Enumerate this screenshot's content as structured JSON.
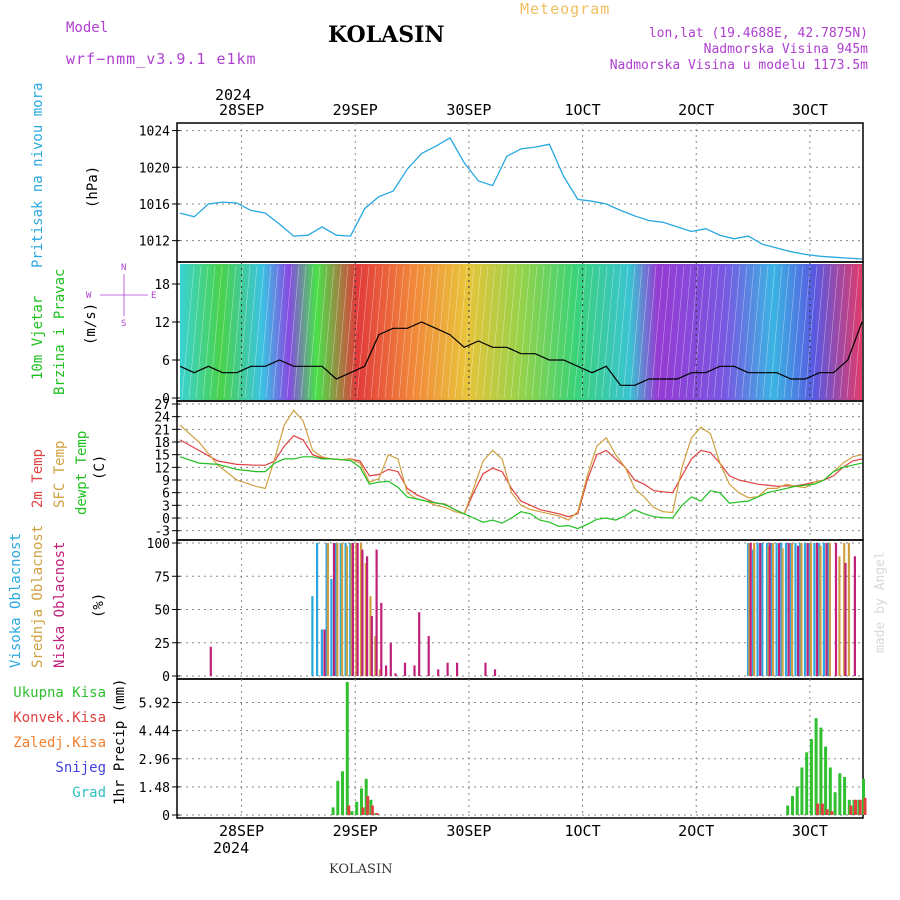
{
  "header": {
    "model_label": "Model",
    "model_name": "wrf−nmm_v3.9.1  e1km",
    "station": "KOLASIN",
    "meteogram_label": "Meteogram",
    "coords": "lon,lat (19.4688E, 42.7875N)",
    "elevation": "Nadmorska Visina 945m",
    "model_elevation": "Nadmorska Visina u modelu 1173.5m"
  },
  "footer": {
    "station": "KOLASIN",
    "watermark": "made by Angel"
  },
  "time_axis": {
    "year": "2024",
    "labels": [
      "28SEP",
      "29SEP",
      "30SEP",
      "1OCT",
      "2OCT",
      "3OCT"
    ],
    "hours_start": 0,
    "hours_end": 144
  },
  "panels": {
    "pressure": {
      "label1": "Pritisak na nivou mora",
      "unit": "(hPa)",
      "color": "#29a8e0"
    },
    "wind": {
      "label1": "10m Vjetar",
      "label2": "Brzina i Pravac",
      "unit": "(m/s)",
      "compass": [
        "N",
        "E",
        "S",
        "W"
      ],
      "color": "#20c020"
    },
    "temp": {
      "label1": "2m Temp",
      "label2": "SFC Temp",
      "label3": "dewpt Temp",
      "unit": "(C)"
    },
    "cloud": {
      "label1": "Visoka Oblacnost",
      "label2": "Srednja Oblacnost",
      "label3": "Niska Oblacnost",
      "unit": "(%)"
    },
    "precip": {
      "unit": "1hr Precip (mm)",
      "legend": [
        {
          "name": "Ukupna Kisa",
          "color": "#30c030"
        },
        {
          "name": "Konvek.Kisa",
          "color": "#e04040"
        },
        {
          "name": "Zaledj.Kisa",
          "color": "#f08030"
        },
        {
          "name": "Snijeg",
          "color": "#4040e0"
        },
        {
          "name": "Grad",
          "color": "#30c0c0"
        }
      ]
    }
  },
  "chart_data": [
    {
      "type": "line",
      "ylim": [
        1010,
        1024.5
      ],
      "yticks": [
        1012,
        1016,
        1020,
        1024
      ],
      "series": [
        {
          "color": "#29a8e0",
          "x": [
            0,
            3,
            6,
            9,
            12,
            15,
            18,
            21,
            24,
            27,
            30,
            33,
            36,
            39,
            42,
            45,
            48,
            51,
            54,
            57,
            60,
            63,
            66,
            69,
            72,
            75,
            78,
            81,
            84,
            87,
            90,
            93,
            96,
            99,
            102,
            105,
            108,
            111,
            114,
            117,
            120,
            123,
            126,
            129,
            132,
            135,
            138,
            141,
            144
          ],
          "y": [
            1015,
            1014.6,
            1016,
            1016.2,
            1016.1,
            1015.3,
            1015,
            1013.8,
            1012.5,
            1012.6,
            1013.5,
            1012.6,
            1012.5,
            1015.5,
            1016.8,
            1017.4,
            1019.8,
            1021.5,
            1022.3,
            1023.2,
            1020.5,
            1018.5,
            1018,
            1021.2,
            1022,
            1022.2,
            1022.5,
            1019,
            1016.5,
            1016.3,
            1016,
            1015.3,
            1014.7,
            1014.2,
            1014,
            1013.5,
            1013,
            1013.3,
            1012.6,
            1012.2,
            1012.5,
            1011.6,
            1011.2,
            1010.8,
            1010.5,
            1010.3,
            1010.2,
            1010.1,
            1010
          ]
        }
      ]
    },
    {
      "type": "line",
      "ylim": [
        0,
        21
      ],
      "yticks": [
        0,
        6,
        12,
        18
      ],
      "series": [
        {
          "name": "speed",
          "color": "#000000",
          "x": [
            0,
            3,
            6,
            9,
            12,
            15,
            18,
            21,
            24,
            27,
            30,
            33,
            36,
            39,
            42,
            45,
            48,
            51,
            54,
            57,
            60,
            63,
            66,
            69,
            72,
            75,
            78,
            81,
            84,
            87,
            90,
            93,
            96,
            99,
            102,
            105,
            108,
            111,
            114,
            117,
            120,
            123,
            126,
            129,
            132,
            135,
            138,
            141,
            144
          ],
          "y": [
            5,
            4,
            5,
            4,
            4,
            5,
            5,
            6,
            5,
            5,
            5,
            3,
            4,
            5,
            10,
            11,
            11,
            12,
            11,
            10,
            8,
            9,
            8,
            8,
            7,
            7,
            6,
            6,
            5,
            4,
            5,
            2,
            2,
            3,
            3,
            3,
            4,
            4,
            5,
            5,
            4,
            4,
            4,
            3,
            3,
            4,
            4,
            6,
            12
          ]
        }
      ]
    },
    {
      "type": "line",
      "ylim": [
        -4.5,
        27
      ],
      "yticks": [
        -3,
        0,
        3,
        6,
        9,
        12,
        15,
        18,
        21,
        24,
        27
      ],
      "series": [
        {
          "name": "2m",
          "color": "#e04040",
          "x": [
            0,
            4,
            8,
            12,
            16,
            18,
            20,
            22,
            24,
            26,
            28,
            30,
            32,
            34,
            36,
            38,
            40,
            42,
            44,
            46,
            48,
            50,
            52,
            54,
            56,
            58,
            60,
            62,
            64,
            66,
            68,
            70,
            72,
            74,
            76,
            78,
            80,
            82,
            84,
            86,
            88,
            90,
            92,
            94,
            96,
            98,
            100,
            102,
            104,
            106,
            108,
            110,
            112,
            114,
            116,
            118,
            120,
            122,
            124,
            126,
            128,
            130,
            132,
            134,
            136,
            138,
            140,
            142,
            144
          ],
          "y": [
            18.5,
            16,
            13.5,
            12.7,
            12.5,
            12.5,
            13.5,
            17,
            19.5,
            18.5,
            15,
            14.2,
            14,
            13.8,
            14,
            13.5,
            10,
            10.3,
            11.5,
            11,
            7,
            5.5,
            4.5,
            3.5,
            3.3,
            2,
            1,
            6,
            10.5,
            11.8,
            11,
            7,
            4,
            3,
            2,
            1.5,
            1,
            0.3,
            1,
            9,
            15,
            16,
            14,
            12,
            9,
            8,
            6.5,
            6.2,
            6,
            10,
            14,
            16,
            15.5,
            13,
            10,
            9,
            8.5,
            8,
            7.8,
            7.5,
            7.6,
            7.6,
            8,
            8.5,
            9,
            10,
            12,
            13.5,
            14
          ]
        },
        {
          "name": "SFC",
          "color": "#d0a040",
          "x": [
            0,
            4,
            8,
            12,
            16,
            18,
            20,
            22,
            24,
            26,
            28,
            30,
            32,
            34,
            36,
            38,
            40,
            42,
            44,
            46,
            48,
            50,
            52,
            54,
            56,
            58,
            60,
            62,
            64,
            66,
            68,
            70,
            72,
            74,
            76,
            78,
            80,
            82,
            84,
            86,
            88,
            90,
            92,
            94,
            96,
            98,
            100,
            102,
            104,
            106,
            108,
            110,
            112,
            114,
            116,
            118,
            120,
            122,
            124,
            126,
            128,
            130,
            132,
            134,
            136,
            138,
            140,
            142,
            144
          ],
          "y": [
            22,
            18,
            12.5,
            9,
            7.5,
            7,
            14,
            22,
            25.5,
            23,
            16,
            14.5,
            14,
            13.8,
            14,
            13,
            8.5,
            9.3,
            15,
            14,
            6,
            4.5,
            4,
            3,
            2.5,
            1.5,
            1,
            7,
            13.5,
            16,
            14,
            6,
            3,
            2,
            1.5,
            1,
            0.5,
            -0.5,
            1.5,
            10,
            17,
            19,
            15,
            12,
            7,
            5,
            2.5,
            1.5,
            1.3,
            12,
            19,
            21.5,
            20,
            13,
            8,
            6,
            4.8,
            5,
            7,
            7,
            8,
            7.5,
            7.2,
            8.5,
            9,
            11,
            13,
            14.5,
            15
          ]
        },
        {
          "name": "dewpt",
          "color": "#20c020",
          "x": [
            0,
            4,
            8,
            12,
            16,
            18,
            20,
            22,
            24,
            26,
            28,
            30,
            32,
            34,
            36,
            38,
            40,
            42,
            44,
            46,
            48,
            50,
            52,
            54,
            56,
            58,
            60,
            62,
            64,
            66,
            68,
            70,
            72,
            74,
            76,
            78,
            80,
            82,
            84,
            86,
            88,
            90,
            92,
            94,
            96,
            98,
            100,
            102,
            104,
            106,
            108,
            110,
            112,
            114,
            116,
            118,
            120,
            122,
            124,
            126,
            128,
            130,
            132,
            134,
            136,
            138,
            140,
            142,
            144
          ],
          "y": [
            14.5,
            13,
            12.7,
            11.5,
            11,
            11,
            13,
            14,
            14,
            14.5,
            14.5,
            14,
            14,
            13.8,
            13.6,
            12,
            8,
            8.5,
            8.7,
            7.3,
            5,
            4.5,
            4,
            3.6,
            3.2,
            2,
            1,
            0,
            -1,
            -0.5,
            -1.2,
            0,
            1.5,
            1,
            -0.5,
            -1,
            -2,
            -1.8,
            -2.5,
            -1.5,
            -0.3,
            0,
            -0.5,
            0.5,
            2,
            1,
            0.3,
            0.1,
            0,
            3,
            5,
            4,
            6.5,
            6,
            3.5,
            3.8,
            4,
            5,
            6,
            6.5,
            7,
            7.5,
            7.8,
            8,
            9,
            11,
            12,
            12.5,
            13
          ]
        }
      ]
    },
    {
      "type": "bar",
      "ylim": [
        0,
        100
      ],
      "yticks": [
        0,
        25,
        50,
        75,
        100
      ],
      "series": [
        {
          "name": "high",
          "color": "#29a8e0",
          "x": [
            28,
            29,
            30,
            31,
            32,
            33,
            34,
            35,
            36,
            120,
            121,
            122,
            123,
            124,
            125,
            126,
            127,
            128,
            129,
            130,
            131,
            132,
            133,
            134,
            135,
            136,
            137
          ],
          "y": [
            60,
            100,
            35,
            100,
            73,
            100,
            100,
            100,
            100,
            100,
            95,
            100,
            100,
            100,
            100,
            100,
            100,
            100,
            100,
            100,
            100,
            100,
            100,
            100,
            100,
            100,
            100
          ]
        },
        {
          "name": "mid",
          "color": "#d0a040",
          "x": [
            31,
            33,
            34,
            35,
            36,
            37,
            38,
            39,
            40,
            41,
            42,
            120,
            121,
            124,
            125,
            127,
            129,
            131,
            133,
            135,
            137,
            139,
            140,
            141
          ],
          "y": [
            100,
            100,
            100,
            98,
            100,
            100,
            100,
            85,
            60,
            30,
            5,
            100,
            100,
            98,
            100,
            96,
            100,
            100,
            100,
            98,
            100,
            90,
            100,
            100
          ]
        },
        {
          "name": "low",
          "color": "#c0207a",
          "x": [
            6,
            30,
            32,
            36,
            37,
            38,
            39,
            40,
            41,
            42,
            43,
            44,
            45,
            47,
            49,
            50,
            52,
            54,
            56,
            58,
            64,
            66,
            120,
            122,
            124,
            126,
            128,
            130,
            132,
            134,
            136,
            138,
            140,
            142
          ],
          "y": [
            22,
            35,
            100,
            100,
            100,
            95,
            90,
            45,
            95,
            55,
            8,
            25,
            2,
            10,
            8,
            48,
            30,
            5,
            10,
            10,
            10,
            5,
            100,
            100,
            100,
            100,
            100,
            98,
            100,
            100,
            100,
            100,
            85,
            90
          ]
        }
      ]
    },
    {
      "type": "bar",
      "ylim": [
        0,
        7
      ],
      "yticks": [
        0,
        1.48,
        2.96,
        4.44,
        5.92
      ],
      "series": [
        {
          "name": "total",
          "color": "#30c030",
          "x": [
            32,
            33,
            34,
            35,
            36,
            37,
            38,
            39,
            40,
            41,
            128,
            129,
            130,
            131,
            132,
            133,
            134,
            135,
            136,
            137,
            138,
            139,
            140,
            141,
            142,
            143,
            144
          ],
          "y": [
            0.4,
            1.8,
            2.3,
            7,
            0.2,
            0.7,
            1.4,
            1.9,
            0.8,
            0.1,
            0.5,
            1.0,
            1.5,
            2.5,
            3.3,
            4.0,
            5.1,
            4.6,
            3.6,
            2.5,
            1.2,
            2.2,
            2.0,
            0.8,
            0.8,
            0.8,
            1.9
          ]
        },
        {
          "name": "konv",
          "color": "#e04040",
          "x": [
            35,
            38,
            39,
            40,
            41,
            134,
            135,
            136,
            137,
            141,
            142,
            143,
            144
          ],
          "y": [
            0.5,
            0.4,
            1.0,
            0.5,
            0.1,
            0.6,
            0.6,
            0.3,
            0.2,
            0.5,
            0.8,
            0.8,
            0.9
          ]
        }
      ]
    }
  ]
}
